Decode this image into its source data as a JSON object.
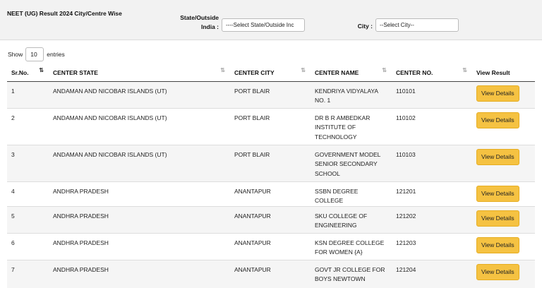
{
  "header": {
    "title": "NEET (UG) Result 2024 City/Centre Wise",
    "state_label_line1": "State/Outside",
    "state_label_line2": "India :",
    "state_select_value": "----Select State/Outside Inc",
    "city_label": "City :",
    "city_select_value": "--Select City--"
  },
  "length_control": {
    "show_label": "Show",
    "entries_value": "10",
    "entries_label": "entries"
  },
  "table": {
    "columns": [
      "Sr.No.",
      "CENTER STATE",
      "CENTER CITY",
      "CENTER NAME",
      "CENTER NO.",
      "View Result"
    ],
    "sort_icon": "⇅",
    "button_label": "View Details",
    "rows": [
      {
        "sr": "1",
        "state": "ANDAMAN AND NICOBAR ISLANDS (UT)",
        "city": "PORT BLAIR",
        "name": "KENDRIYA VIDYALAYA NO. 1",
        "no": "110101"
      },
      {
        "sr": "2",
        "state": "ANDAMAN AND NICOBAR ISLANDS (UT)",
        "city": "PORT BLAIR",
        "name": "DR B R AMBEDKAR INSTITUTE OF TECHNOLOGY",
        "no": "110102"
      },
      {
        "sr": "3",
        "state": "ANDAMAN AND NICOBAR ISLANDS (UT)",
        "city": "PORT BLAIR",
        "name": "GOVERNMENT MODEL SENIOR SECONDARY SCHOOL",
        "no": "110103"
      },
      {
        "sr": "4",
        "state": "ANDHRA PRADESH",
        "city": "ANANTAPUR",
        "name": "SSBN DEGREE COLLEGE",
        "no": "121201"
      },
      {
        "sr": "5",
        "state": "ANDHRA PRADESH",
        "city": "ANANTAPUR",
        "name": "SKU COLLEGE OF ENGINEERING",
        "no": "121202"
      },
      {
        "sr": "6",
        "state": "ANDHRA PRADESH",
        "city": "ANANTAPUR",
        "name": "KSN DEGREE COLLEGE FOR WOMEN {A}",
        "no": "121203"
      },
      {
        "sr": "7",
        "state": "ANDHRA PRADESH",
        "city": "ANANTAPUR",
        "name": "GOVT JR COLLEGE FOR BOYS NEWTOWN",
        "no": "121204"
      }
    ]
  }
}
